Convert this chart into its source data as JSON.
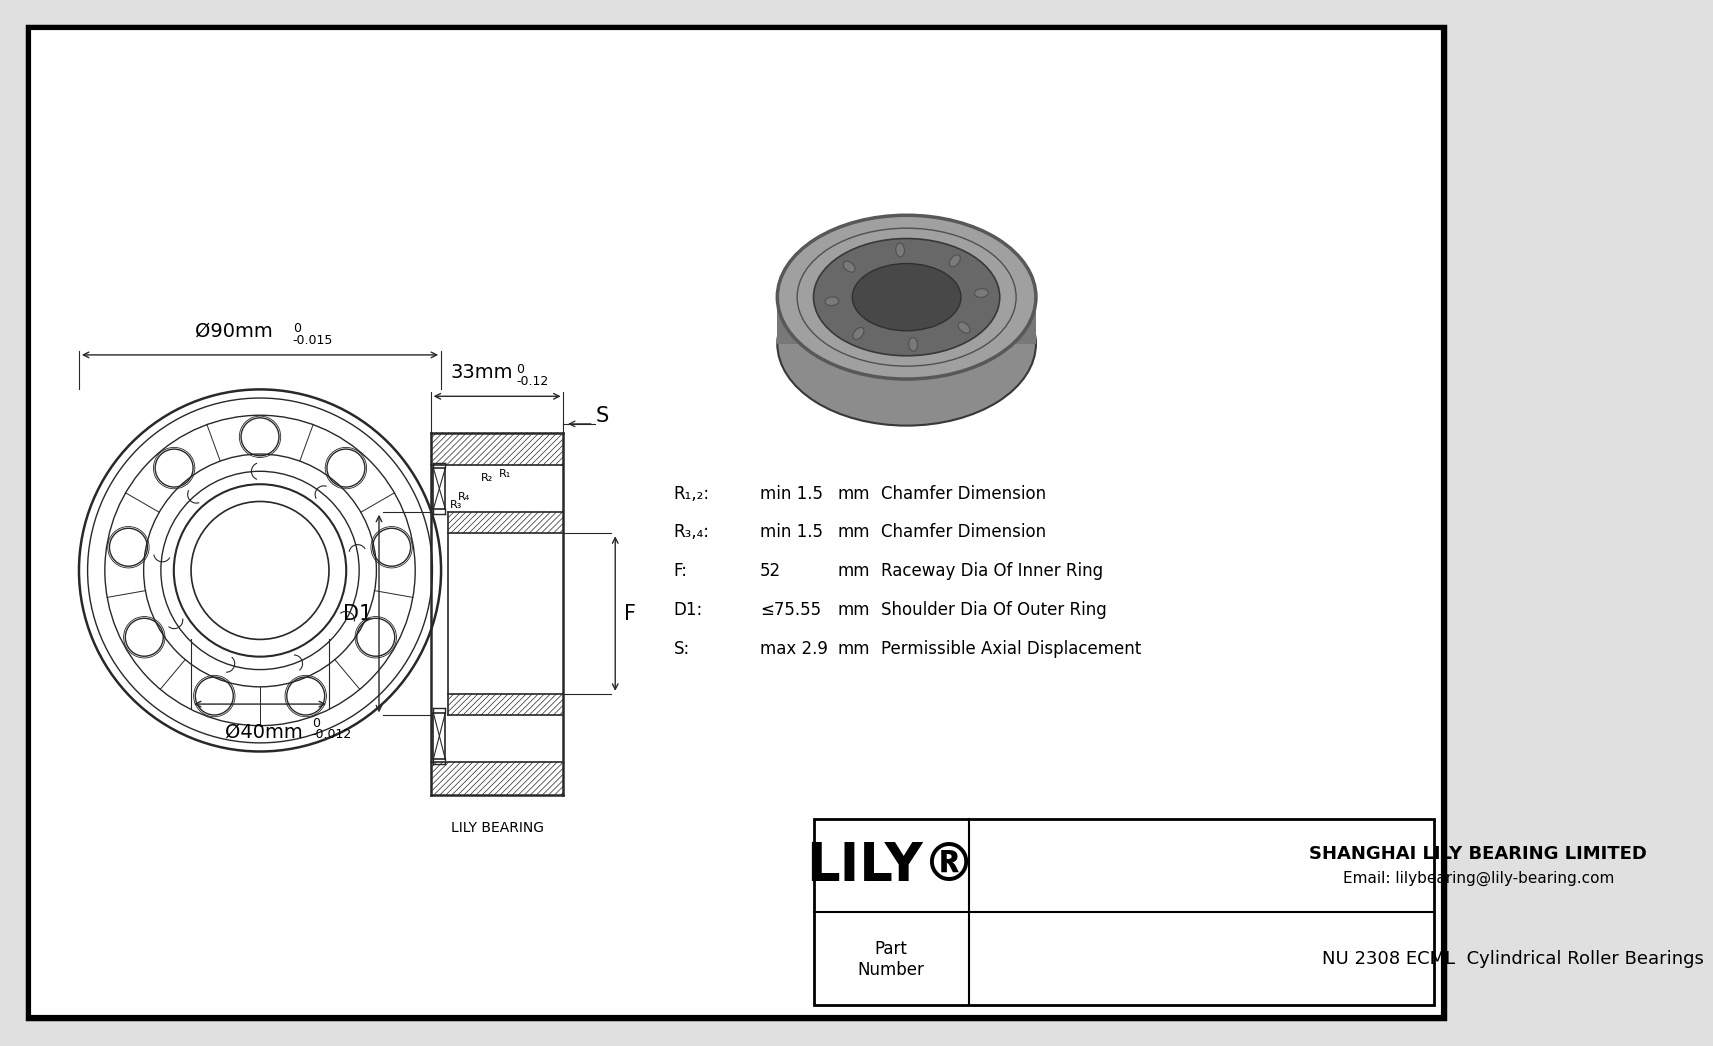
{
  "bg_color": "#e0e0e0",
  "drawing_bg": "#ffffff",
  "line_color": "#282828",
  "border_color": "#000000",
  "company": "SHANGHAI LILY BEARING LIMITED",
  "email": "Email: lilybearing@lily-bearing.com",
  "part_label": "Part\nNumber",
  "part_number": "NU 2308 ECML  Cylindrical Roller Bearings",
  "lily_logo": "LILY®",
  "dim_outer_label": "Ø90mm",
  "dim_outer_tol_hi": "0",
  "dim_outer_tol_lo": "-0.015",
  "dim_inner_label": "Ø40mm",
  "dim_inner_tol_hi": "0",
  "dim_inner_tol_lo": "-0.012",
  "dim_width_label": "33mm",
  "dim_width_tol_hi": "0",
  "dim_width_tol_lo": "-0.12",
  "label_S": "S",
  "label_D1": "D1",
  "label_F": "F",
  "lily_bearing": "LILY BEARING",
  "specs": [
    [
      "R₁,₂:",
      "min 1.5",
      "mm",
      "Chamfer Dimension"
    ],
    [
      "R₃,₄:",
      "min 1.5",
      "mm",
      "Chamfer Dimension"
    ],
    [
      "F:",
      "52",
      "mm",
      "Raceway Dia Of Inner Ring"
    ],
    [
      "D1:",
      "≤75.55",
      "mm",
      "Shoulder Dia Of Outer Ring"
    ],
    [
      "S:",
      "max 2.9",
      "mm",
      "Permissible Axial Displacement"
    ]
  ]
}
